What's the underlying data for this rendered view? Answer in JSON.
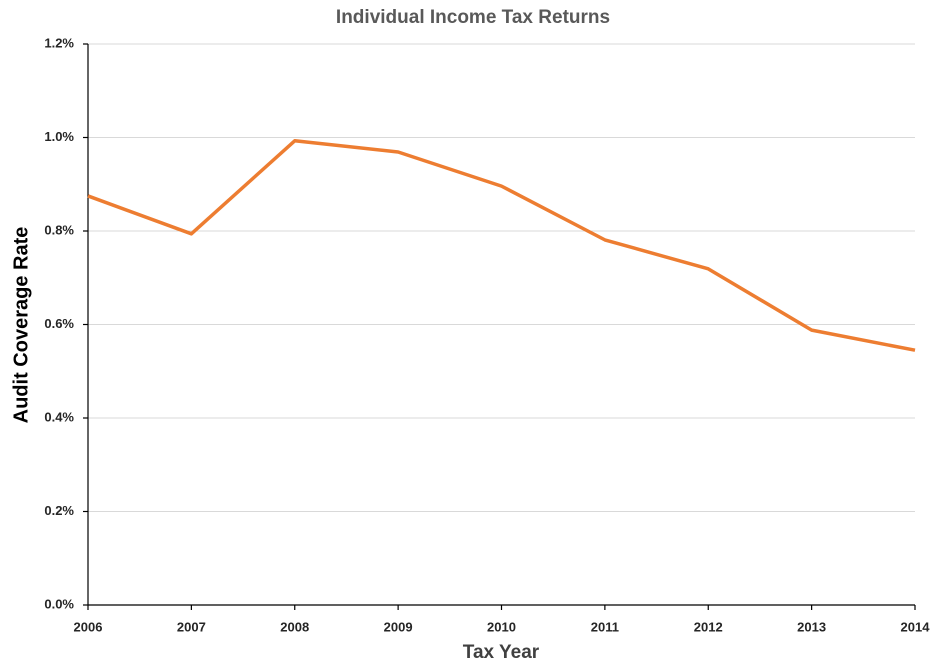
{
  "chart_data": {
    "type": "line",
    "title": "Individual Income Tax Returns",
    "x_label": "Tax Year",
    "y_label": "Audit Coverage Rate",
    "x": [
      2006,
      2007,
      2008,
      2009,
      2010,
      2011,
      2012,
      2013,
      2014
    ],
    "series": [
      {
        "name": "Audit Coverage Rate",
        "color": "#ed7d31",
        "values": [
          0.875,
          0.794,
          0.993,
          0.969,
          0.896,
          0.781,
          0.719,
          0.588,
          0.545
        ]
      }
    ],
    "xlim": [
      2006,
      2014
    ],
    "xticks": [
      2006,
      2007,
      2008,
      2009,
      2010,
      2011,
      2012,
      2013,
      2014
    ],
    "ylim": [
      0,
      1.2
    ],
    "yticks": [
      {
        "value": 0,
        "label": "0.0%"
      },
      {
        "value": 0.2,
        "label": "0.2%"
      },
      {
        "value": 0.4,
        "label": "0.4%"
      },
      {
        "value": 0.6,
        "label": "0.6%"
      },
      {
        "value": 0.8,
        "label": "0.8%"
      },
      {
        "value": 1.0,
        "label": "1.0%"
      },
      {
        "value": 1.2,
        "label": "1.2%"
      }
    ],
    "grid": true
  }
}
